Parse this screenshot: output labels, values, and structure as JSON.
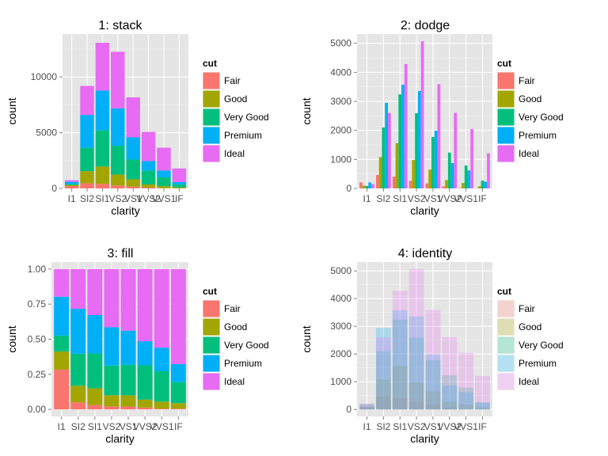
{
  "cut_levels": [
    "Fair",
    "Good",
    "Very Good",
    "Premium",
    "Ideal"
  ],
  "cut_colors": [
    "#F8766D",
    "#A3A500",
    "#00BF7D",
    "#00B0F6",
    "#E76BF3"
  ],
  "chart_data": [
    {
      "type": "bar",
      "position": "stack",
      "title": "1: stack",
      "xlabel": "clarity",
      "ylabel": "count",
      "legend_title": "cut",
      "legend": "right",
      "categories": [
        "I1",
        "SI2",
        "SI1",
        "VS2",
        "VS1",
        "VVS2",
        "VVS1",
        "IF"
      ],
      "ylim": [
        0,
        13850
      ],
      "yticks": [
        0,
        5000,
        10000
      ],
      "ytick_labels": [
        "0",
        "5000",
        "10000"
      ],
      "series": [
        {
          "name": "Fair",
          "values": [
            210,
            466,
            408,
            261,
            170,
            69,
            17,
            9
          ]
        },
        {
          "name": "Good",
          "values": [
            96,
            1081,
            1560,
            978,
            648,
            286,
            186,
            71
          ]
        },
        {
          "name": "Very Good",
          "values": [
            84,
            2100,
            3240,
            2591,
            1775,
            1235,
            789,
            268
          ]
        },
        {
          "name": "Premium",
          "values": [
            205,
            2949,
            3575,
            3357,
            1989,
            870,
            616,
            230
          ]
        },
        {
          "name": "Ideal",
          "values": [
            146,
            2598,
            4282,
            5071,
            3589,
            2606,
            2047,
            1212
          ]
        }
      ]
    },
    {
      "type": "bar",
      "position": "dodge",
      "title": "2: dodge",
      "xlabel": "clarity",
      "ylabel": "count",
      "legend_title": "cut",
      "legend": "right",
      "categories": [
        "I1",
        "SI2",
        "SI1",
        "VS2",
        "VS1",
        "VVS2",
        "VVS1",
        "IF"
      ],
      "ylim": [
        0,
        5320
      ],
      "yticks": [
        0,
        1000,
        2000,
        3000,
        4000,
        5000
      ],
      "ytick_labels": [
        "0",
        "1000",
        "2000",
        "3000",
        "4000",
        "5000"
      ],
      "series": [
        {
          "name": "Fair",
          "values": [
            210,
            466,
            408,
            261,
            170,
            69,
            17,
            9
          ]
        },
        {
          "name": "Good",
          "values": [
            96,
            1081,
            1560,
            978,
            648,
            286,
            186,
            71
          ]
        },
        {
          "name": "Very Good",
          "values": [
            84,
            2100,
            3240,
            2591,
            1775,
            1235,
            789,
            268
          ]
        },
        {
          "name": "Premium",
          "values": [
            205,
            2949,
            3575,
            3357,
            1989,
            870,
            616,
            230
          ]
        },
        {
          "name": "Ideal",
          "values": [
            146,
            2598,
            4282,
            5071,
            3589,
            2606,
            2047,
            1212
          ]
        }
      ]
    },
    {
      "type": "bar",
      "position": "fill",
      "title": "3: fill",
      "xlabel": "clarity",
      "ylabel": "count",
      "legend_title": "cut",
      "legend": "right",
      "categories": [
        "I1",
        "SI2",
        "SI1",
        "VS2",
        "VS1",
        "VVS2",
        "VVS1",
        "IF"
      ],
      "ylim": [
        -0.05,
        1.05
      ],
      "yticks": [
        0,
        0.25,
        0.5,
        0.75,
        1
      ],
      "ytick_labels": [
        "0.00",
        "0.25",
        "0.50",
        "0.75",
        "1.00"
      ],
      "series": [
        {
          "name": "Fair",
          "values": [
            210,
            466,
            408,
            261,
            170,
            69,
            17,
            9
          ]
        },
        {
          "name": "Good",
          "values": [
            96,
            1081,
            1560,
            978,
            648,
            286,
            186,
            71
          ]
        },
        {
          "name": "Very Good",
          "values": [
            84,
            2100,
            3240,
            2591,
            1775,
            1235,
            789,
            268
          ]
        },
        {
          "name": "Premium",
          "values": [
            205,
            2949,
            3575,
            3357,
            1989,
            870,
            616,
            230
          ]
        },
        {
          "name": "Ideal",
          "values": [
            146,
            2598,
            4282,
            5071,
            3589,
            2606,
            2047,
            1212
          ]
        }
      ]
    },
    {
      "type": "bar",
      "position": "identity",
      "alpha": 0.25,
      "title": "4: identity",
      "xlabel": "clarity",
      "ylabel": "count",
      "legend_title": "cut",
      "legend": "right",
      "categories": [
        "I1",
        "SI2",
        "SI1",
        "VS2",
        "VS1",
        "VVS2",
        "VVS1",
        "IF"
      ],
      "ylim": [
        -250,
        5320
      ],
      "yticks": [
        0,
        1000,
        2000,
        3000,
        4000,
        5000
      ],
      "ytick_labels": [
        "0",
        "1000",
        "2000",
        "3000",
        "4000",
        "5000"
      ],
      "series": [
        {
          "name": "Fair",
          "values": [
            210,
            466,
            408,
            261,
            170,
            69,
            17,
            9
          ]
        },
        {
          "name": "Good",
          "values": [
            96,
            1081,
            1560,
            978,
            648,
            286,
            186,
            71
          ]
        },
        {
          "name": "Very Good",
          "values": [
            84,
            2100,
            3240,
            2591,
            1775,
            1235,
            789,
            268
          ]
        },
        {
          "name": "Premium",
          "values": [
            205,
            2949,
            3575,
            3357,
            1989,
            870,
            616,
            230
          ]
        },
        {
          "name": "Ideal",
          "values": [
            146,
            2598,
            4282,
            5071,
            3589,
            2606,
            2047,
            1212
          ]
        }
      ]
    }
  ]
}
